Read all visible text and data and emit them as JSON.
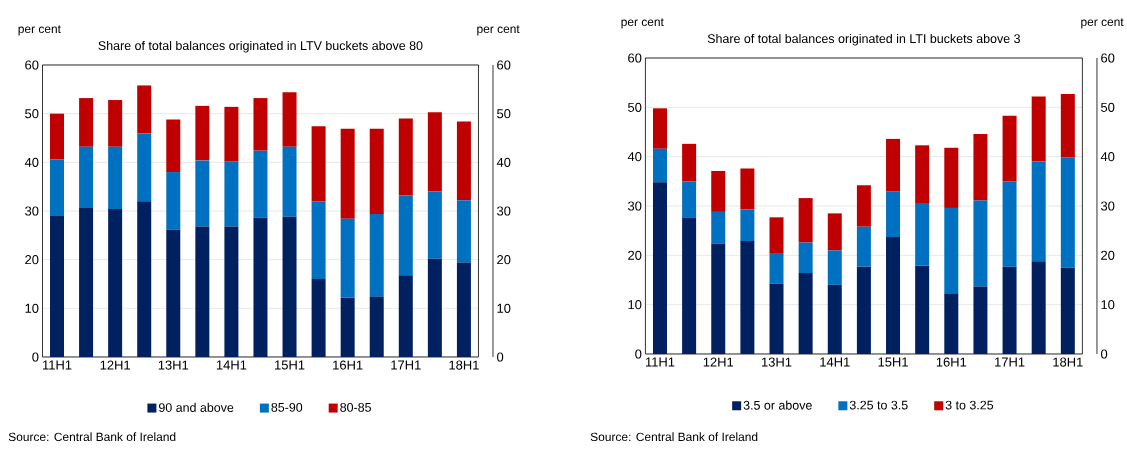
{
  "chart_data": [
    {
      "type": "bar",
      "stacked": true,
      "title": "Share of total balances originated in LTV buckets above 80",
      "ylabel": "per cent",
      "y2label": "per cent",
      "categories": [
        "11H1",
        null,
        "12H1",
        null,
        "13H1",
        null,
        "14H1",
        null,
        "15H1",
        null,
        "16H1",
        null,
        "17H1",
        null,
        "18H1"
      ],
      "series": [
        {
          "name": "90 and above",
          "color": "#002060",
          "values": [
            29,
            30.6,
            30.4,
            32,
            26.2,
            26.8,
            26.8,
            28.6,
            28.8,
            16,
            12.2,
            12.4,
            16.8,
            20.2,
            19.4
          ]
        },
        {
          "name": "85-90",
          "color": "#0070c0",
          "values": [
            11.6,
            12.6,
            12.8,
            14,
            11.8,
            13.6,
            13.4,
            13.8,
            14.4,
            16,
            16.2,
            17,
            16.4,
            13.8,
            12.8
          ]
        },
        {
          "name": "80-85",
          "color": "#c00000",
          "values": [
            9.4,
            10,
            9.6,
            9.8,
            10.8,
            11.2,
            11.2,
            10.8,
            11.2,
            15.4,
            18.5,
            17.5,
            15.8,
            16.3,
            16.2
          ]
        }
      ],
      "ylim": [
        0,
        60
      ],
      "yticks": [
        0,
        10,
        20,
        30,
        40,
        50,
        60
      ],
      "y2lim": [
        0,
        60
      ],
      "y2ticks": [
        0,
        10,
        20,
        30,
        40,
        50,
        60
      ],
      "grid": "y",
      "legend": "bottom",
      "annotations": [
        "Source: Central Bank of Ireland"
      ]
    },
    {
      "type": "bar",
      "stacked": true,
      "title": "Share of total balances originated in LTI buckets above 3",
      "ylabel": "per cent",
      "y2label": "per cent",
      "categories": [
        "11H1",
        null,
        "12H1",
        null,
        "13H1",
        null,
        "14H1",
        null,
        "15H1",
        null,
        "16H1",
        null,
        "17H1",
        null,
        "18H1"
      ],
      "series": [
        {
          "name": "3.5 or above",
          "color": "#002060",
          "values": [
            34.8,
            27.6,
            22.4,
            22.9,
            14.3,
            16.4,
            14,
            17.7,
            23.7,
            17.9,
            12.3,
            13.7,
            17.7,
            18.8,
            17.5
          ]
        },
        {
          "name": "3.25 to 3.5",
          "color": "#0070c0",
          "values": [
            6.8,
            7.4,
            6.4,
            6.4,
            6,
            6.2,
            7,
            8.1,
            9.3,
            12.7,
            17.3,
            17.4,
            17.3,
            20.2,
            22.3
          ]
        },
        {
          "name": "3 to 3.25",
          "color": "#c00000",
          "values": [
            8.2,
            7.6,
            8.3,
            8.3,
            7.4,
            9,
            7.5,
            8.4,
            10.6,
            11.7,
            12.2,
            13.5,
            13.3,
            13.2,
            12.9
          ]
        }
      ],
      "ylim": [
        0,
        60
      ],
      "yticks": [
        0,
        10,
        20,
        30,
        40,
        50,
        60
      ],
      "y2lim": [
        0,
        60
      ],
      "y2ticks": [
        0,
        10,
        20,
        30,
        40,
        50,
        60
      ],
      "grid": "y",
      "legend": "bottom",
      "annotations": [
        "Source: Central Bank of Ireland"
      ]
    }
  ]
}
